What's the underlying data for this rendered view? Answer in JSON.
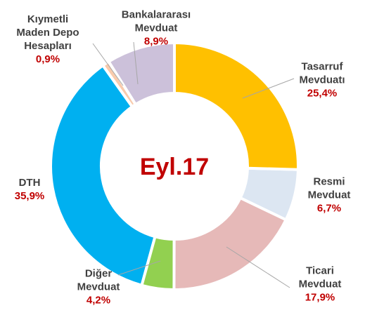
{
  "chart_data": {
    "type": "donut",
    "center_label": "Eyl.17",
    "categories": [
      "Tasarruf\nMevduatı",
      "Resmi\nMevduat",
      "Ticari\nMevduat",
      "Diğer\nMevduat",
      "DTH",
      "Kıymetli\nMaden Depo\nHesapları",
      "Bankalararası\nMevduat"
    ],
    "values": [
      25.4,
      6.7,
      17.9,
      4.2,
      35.9,
      0.9,
      8.9
    ],
    "value_labels": [
      "25,4%",
      "6,7%",
      "17,9%",
      "4,2%",
      "35,9%",
      "0,9%",
      "8,9%"
    ],
    "colors": [
      "#ffc000",
      "#dce6f2",
      "#e6b9b8",
      "#92d050",
      "#00b0f0",
      "#f9cbad",
      "#ccc1da"
    ]
  }
}
